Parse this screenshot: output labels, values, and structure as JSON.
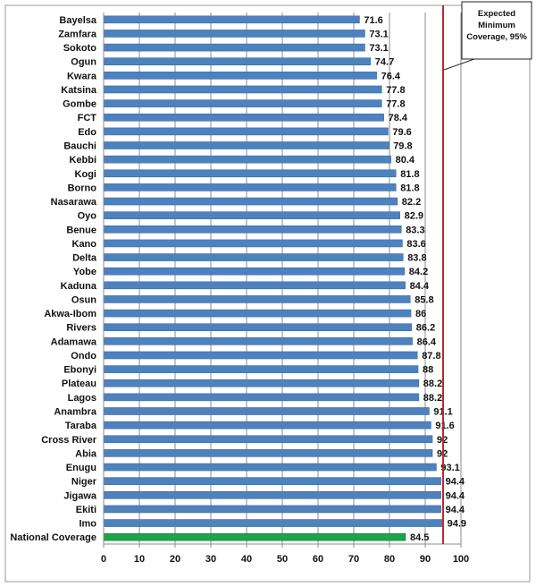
{
  "chart_data": {
    "type": "bar",
    "orientation": "horizontal",
    "categories": [
      "Bayelsa",
      "Zamfara",
      "Sokoto",
      "Ogun",
      "Kwara",
      "Katsina",
      "Gombe",
      "FCT",
      "Edo",
      "Bauchi",
      "Kebbi",
      "Kogi",
      "Borno",
      "Nasarawa",
      "Oyo",
      "Benue",
      "Kano",
      "Delta",
      "Yobe",
      "Kaduna",
      "Osun",
      "Akwa-Ibom",
      "Rivers",
      "Adamawa",
      "Ondo",
      "Ebonyi",
      "Plateau",
      "Lagos",
      "Anambra",
      "Taraba",
      "Cross River",
      "Abia",
      "Enugu",
      "Niger",
      "Jigawa",
      "Ekiti",
      "Imo",
      "National Coverage"
    ],
    "values": [
      71.6,
      73.1,
      73.1,
      74.7,
      76.4,
      77.8,
      77.8,
      78.4,
      79.6,
      79.8,
      80.4,
      81.8,
      81.8,
      82.2,
      82.9,
      83.3,
      83.6,
      83.8,
      84.2,
      84.4,
      85.8,
      86,
      86.2,
      86.4,
      87.8,
      88,
      88.2,
      88.2,
      91.1,
      91.6,
      92,
      92,
      93.1,
      94.4,
      94.4,
      94.4,
      94.9,
      84.5
    ],
    "data_labels": [
      "71.6",
      "73.1",
      "73.1",
      "74.7",
      "76.4",
      "77.8",
      "77.8",
      "78.4",
      "79.6",
      "79.8",
      "80.4",
      "81.8",
      "81.8",
      "82.2",
      "82.9",
      "83.3",
      "83.6",
      "83.8",
      "84.2",
      "84.4",
      "85.8",
      "86",
      "86.2",
      "86.4",
      "87.8",
      "88",
      "88.2",
      "88.2",
      "91.1",
      "91.6",
      "92",
      "92",
      "93.1",
      "94.4",
      "94.4",
      "94.4",
      "94.9",
      "84.5"
    ],
    "bar_colors": {
      "default": "#4f81bd",
      "highlight": "#1ea34a",
      "highlight_category": "National Coverage"
    },
    "xlim": [
      0,
      100
    ],
    "x_ticks": [
      "0",
      "10",
      "20",
      "30",
      "40",
      "50",
      "60",
      "70",
      "80",
      "90",
      "100"
    ],
    "grid": "vertical",
    "reference_line": {
      "value": 95,
      "color": "#c0282c"
    },
    "annotation": {
      "lines": [
        "Expected",
        "Minimum",
        "Coverage, 95%"
      ],
      "placement": "top-right"
    },
    "title": "",
    "xlabel": "",
    "ylabel": ""
  }
}
